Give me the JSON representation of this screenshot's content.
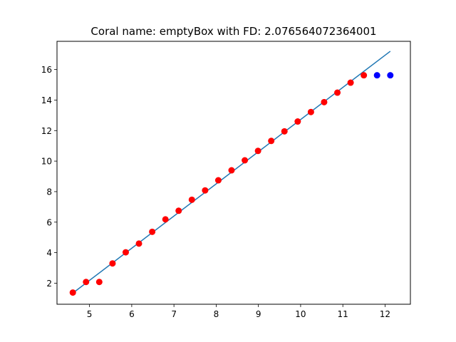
{
  "chart_data": {
    "type": "scatter",
    "title": "Coral name: emptyBox with FD: 2.076564072364001",
    "xlabel": "",
    "ylabel": "",
    "xlim": [
      4.23,
      12.6
    ],
    "ylim": [
      0.62,
      17.85
    ],
    "xticks": [
      5,
      6,
      7,
      8,
      9,
      10,
      11,
      12
    ],
    "yticks": [
      2,
      4,
      6,
      8,
      10,
      12,
      14,
      16
    ],
    "grid": false,
    "legend": "none",
    "colors": {
      "fit_line": "#1f77b4",
      "red_points": "#ff0000",
      "blue_points": "#0000ff"
    },
    "series": [
      {
        "kind": "scatter",
        "color": "#ff0000",
        "x": [
          4.605,
          4.918,
          5.231,
          5.545,
          5.858,
          6.171,
          6.485,
          6.798,
          7.111,
          7.424,
          7.738,
          8.051,
          8.364,
          8.678,
          8.991,
          9.304,
          9.617,
          9.931,
          10.244,
          10.557,
          10.871,
          11.184,
          11.497
        ],
        "y": [
          1.386,
          2.079,
          2.079,
          3.296,
          4.025,
          4.595,
          5.366,
          6.182,
          6.746,
          7.469,
          8.082,
          8.743,
          9.397,
          10.052,
          10.669,
          11.323,
          11.95,
          12.595,
          13.217,
          13.864,
          14.487,
          15.14,
          15.625
        ]
      },
      {
        "kind": "scatter",
        "color": "#0000ff",
        "x": [
          11.81,
          12.124
        ],
        "y": [
          15.625,
          15.625
        ]
      },
      {
        "kind": "line",
        "color": "#1f77b4",
        "x": [
          4.605,
          12.124
        ],
        "y": [
          1.35,
          17.2
        ]
      }
    ]
  }
}
